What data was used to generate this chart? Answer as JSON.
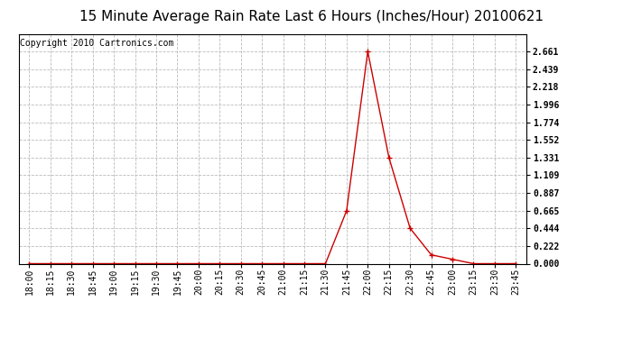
{
  "title": "15 Minute Average Rain Rate Last 6 Hours (Inches/Hour) 20100621",
  "copyright": "Copyright 2010 Cartronics.com",
  "line_color": "#cc0000",
  "marker_color": "#cc0000",
  "bg_color": "#ffffff",
  "grid_color": "#bbbbbb",
  "x_labels": [
    "18:00",
    "18:15",
    "18:30",
    "18:45",
    "19:00",
    "19:15",
    "19:30",
    "19:45",
    "20:00",
    "20:15",
    "20:30",
    "20:45",
    "21:00",
    "21:15",
    "21:30",
    "21:45",
    "22:00",
    "22:15",
    "22:30",
    "22:45",
    "23:00",
    "23:15",
    "23:30",
    "23:45"
  ],
  "y_values": [
    0.0,
    0.0,
    0.0,
    0.0,
    0.0,
    0.0,
    0.0,
    0.0,
    0.0,
    0.0,
    0.0,
    0.0,
    0.0,
    0.0,
    0.0,
    0.665,
    2.661,
    1.331,
    0.444,
    0.111,
    0.055,
    0.0,
    0.0,
    0.0
  ],
  "ylim": [
    0.0,
    2.883
  ],
  "yticks": [
    0.0,
    0.222,
    0.444,
    0.665,
    0.887,
    1.109,
    1.331,
    1.552,
    1.774,
    1.996,
    2.218,
    2.439,
    2.661
  ],
  "title_fontsize": 11,
  "tick_fontsize": 7,
  "ytick_fontsize": 7,
  "copyright_fontsize": 7
}
